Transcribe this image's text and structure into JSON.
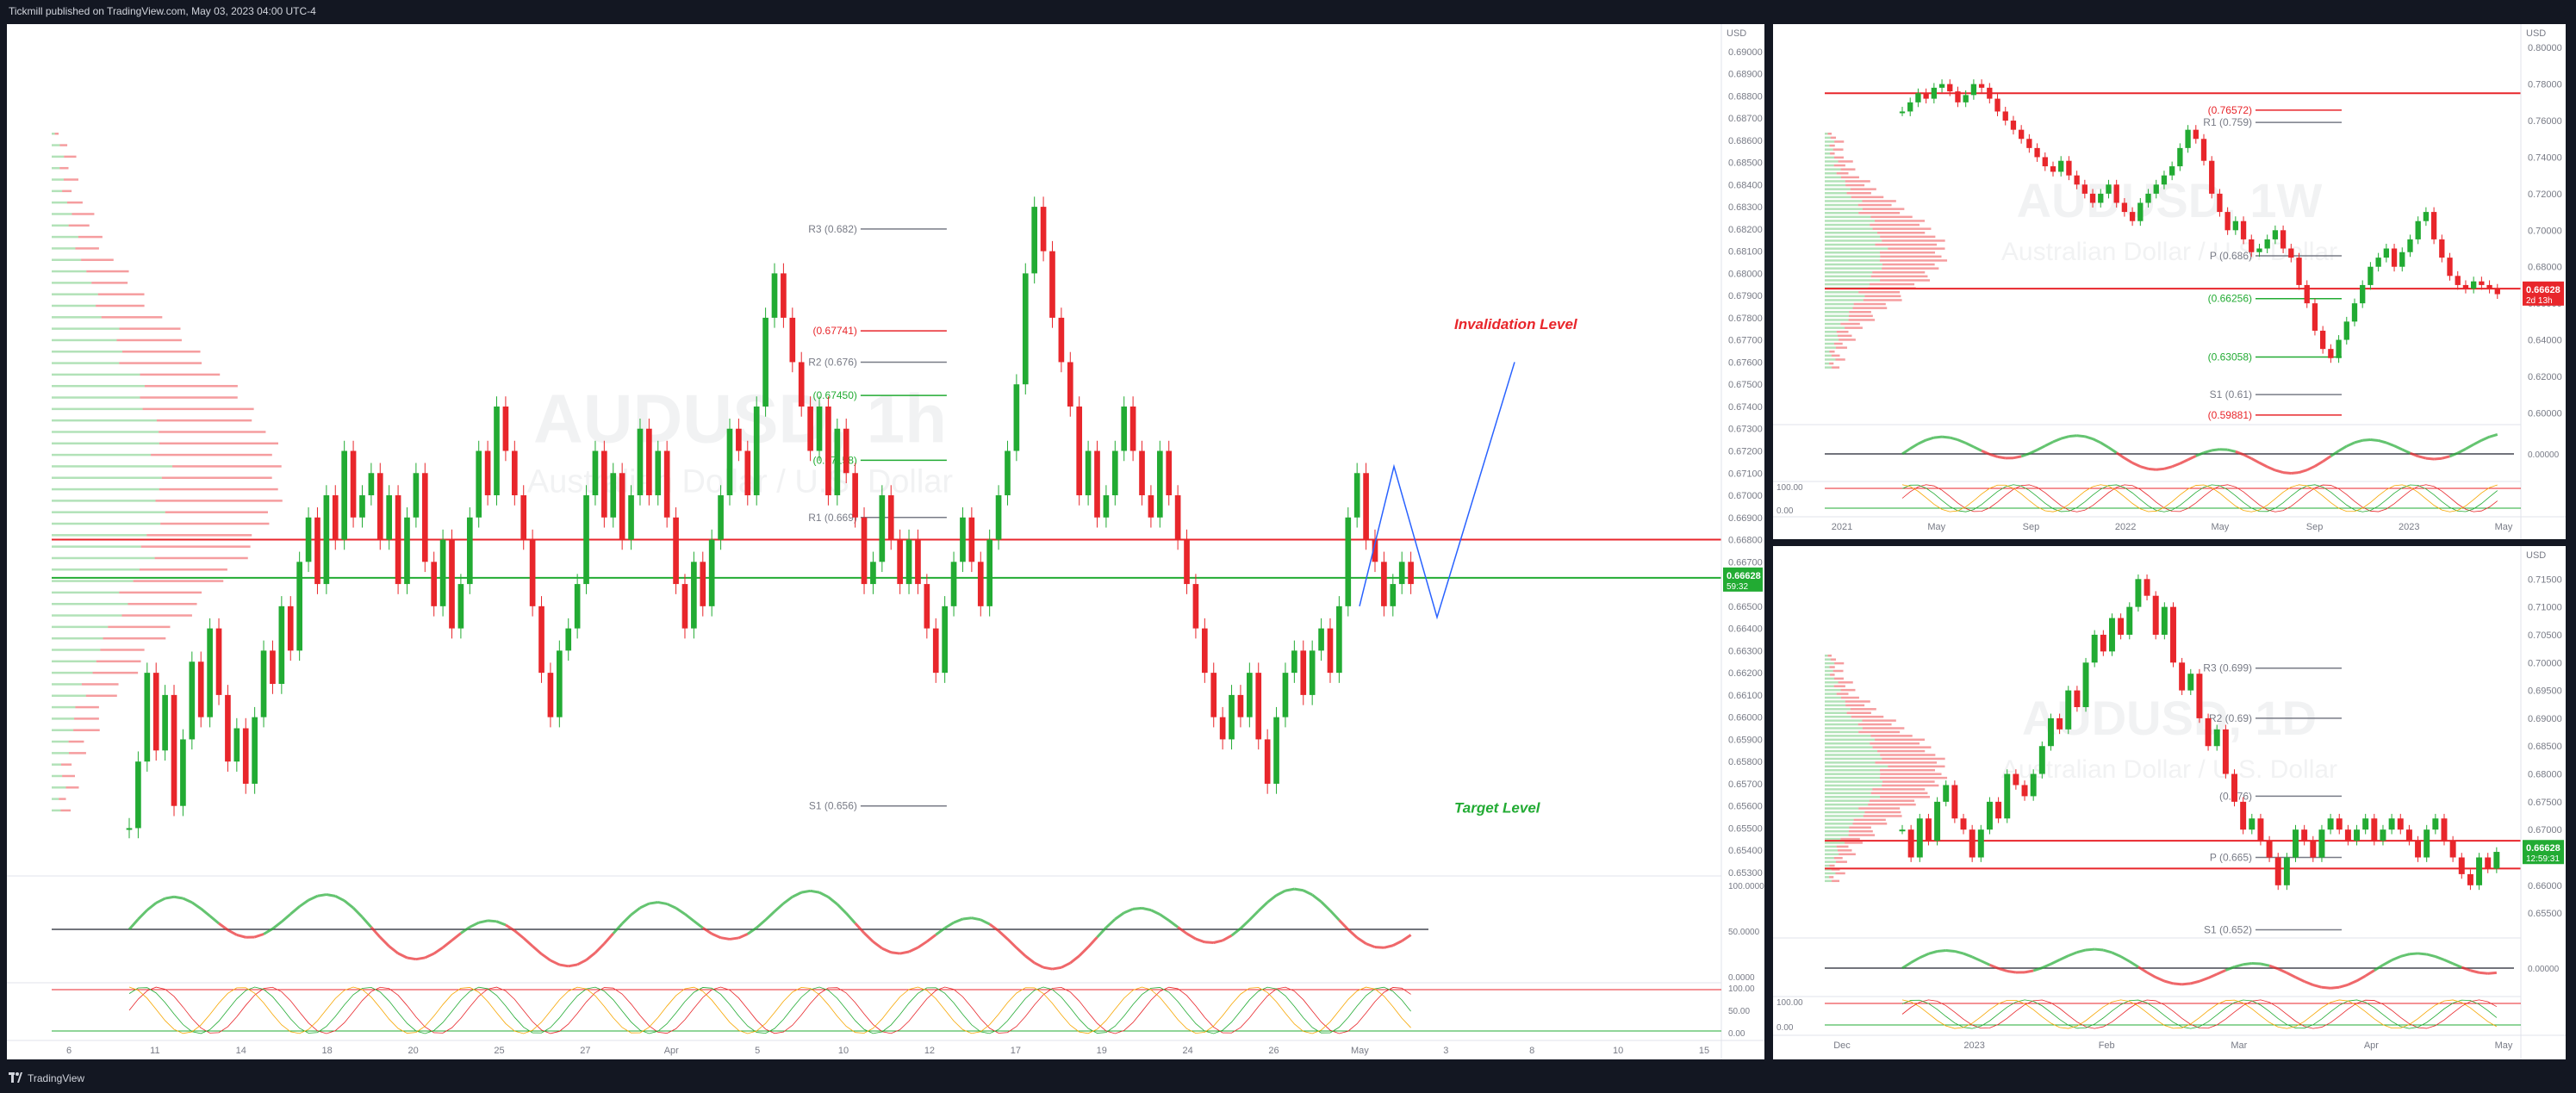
{
  "header": {
    "publisher": "Tickmill published on TradingView.com, May 03, 2023 04:00 UTC-4"
  },
  "footer": {
    "brand": "TradingView"
  },
  "colors": {
    "up": "#22ab33",
    "down": "#e8262b",
    "bg": "#ffffff",
    "axis": "#787b86",
    "blue": "#2962ff"
  },
  "chart_data": [
    {
      "id": "main",
      "type": "candlestick",
      "symbol": "AUDUSD",
      "timeframe": "1h",
      "watermark": "AUDUSD, 1h",
      "subtitle": "Australian Dollar / U.S. Dollar",
      "currency": "USD",
      "ylim": [
        0.653,
        0.691
      ],
      "price_ticks": [
        "0.69000",
        "0.68900",
        "0.68800",
        "0.68700",
        "0.68600",
        "0.68500",
        "0.68400",
        "0.68300",
        "0.68200",
        "0.68100",
        "0.68000",
        "0.67900",
        "0.67800",
        "0.67700",
        "0.67600",
        "0.67500",
        "0.67400",
        "0.67300",
        "0.67200",
        "0.67100",
        "0.67000",
        "0.66900",
        "0.66800",
        "0.66700",
        "0.66600",
        "0.66500",
        "0.66400",
        "0.66300",
        "0.66200",
        "0.66100",
        "0.66000",
        "0.65900",
        "0.65800",
        "0.65700",
        "0.65600",
        "0.65500",
        "0.65400",
        "0.65300"
      ],
      "x_labels": [
        "6",
        "11",
        "14",
        "18",
        "20",
        "25",
        "27",
        "Apr",
        "5",
        "10",
        "12",
        "17",
        "19",
        "24",
        "26",
        "May",
        "3",
        "8",
        "10",
        "15"
      ],
      "last_price": "0.66628",
      "countdown": "59:32",
      "pivots": [
        {
          "label": "R3 (0.682)",
          "value": 0.682,
          "color": "#787b86"
        },
        {
          "label": "(0.67741)",
          "value": 0.67741,
          "color": "#e8262b"
        },
        {
          "label": "R2 (0.676)",
          "value": 0.676,
          "color": "#787b86"
        },
        {
          "label": "(0.67450)",
          "value": 0.6745,
          "color": "#22ab33"
        },
        {
          "label": "(0.67158)",
          "value": 0.67158,
          "color": "#22ab33"
        },
        {
          "label": "R1 (0.669)",
          "value": 0.669,
          "color": "#787b86"
        },
        {
          "label": "S1 (0.656)",
          "value": 0.656,
          "color": "#787b86"
        }
      ],
      "annotations": [
        {
          "text": "Invalidation Level",
          "value": 0.6775,
          "color": "#e8262b"
        },
        {
          "text": "Target Level",
          "value": 0.6557,
          "color": "#22ab33"
        }
      ],
      "horizontal_lines": [
        {
          "value": 0.668,
          "color": "#e8262b"
        },
        {
          "value": 0.66628,
          "color": "#22ab33"
        }
      ],
      "projection": [
        [
          0.665,
          0.6713,
          0.6645,
          0.676
        ]
      ],
      "oscillator_ticks": [
        "100.0000",
        "50.0000",
        "0.0000"
      ],
      "stoch_ticks": [
        "100.00",
        "50.00",
        "0.00"
      ],
      "candles": [
        0.655,
        0.658,
        0.662,
        0.6585,
        0.661,
        0.656,
        0.659,
        0.6625,
        0.66,
        0.664,
        0.661,
        0.658,
        0.6595,
        0.657,
        0.66,
        0.663,
        0.6615,
        0.665,
        0.663,
        0.667,
        0.669,
        0.666,
        0.67,
        0.668,
        0.672,
        0.669,
        0.67,
        0.671,
        0.668,
        0.67,
        0.666,
        0.669,
        0.671,
        0.667,
        0.665,
        0.668,
        0.664,
        0.666,
        0.669,
        0.672,
        0.67,
        0.674,
        0.672,
        0.67,
        0.668,
        0.665,
        0.662,
        0.66,
        0.663,
        0.664,
        0.666,
        0.67,
        0.672,
        0.669,
        0.671,
        0.668,
        0.67,
        0.673,
        0.67,
        0.672,
        0.669,
        0.666,
        0.664,
        0.667,
        0.665,
        0.668,
        0.67,
        0.673,
        0.672,
        0.67,
        0.674,
        0.678,
        0.68,
        0.678,
        0.676,
        0.674,
        0.672,
        0.674,
        0.67,
        0.673,
        0.671,
        0.669,
        0.666,
        0.667,
        0.67,
        0.668,
        0.666,
        0.668,
        0.666,
        0.664,
        0.662,
        0.665,
        0.667,
        0.669,
        0.667,
        0.665,
        0.668,
        0.67,
        0.672,
        0.675,
        0.68,
        0.683,
        0.681,
        0.678,
        0.676,
        0.674,
        0.67,
        0.672,
        0.669,
        0.67,
        0.672,
        0.674,
        0.672,
        0.67,
        0.669,
        0.672,
        0.67,
        0.668,
        0.666,
        0.664,
        0.662,
        0.66,
        0.659,
        0.661,
        0.66,
        0.662,
        0.659,
        0.657,
        0.66,
        0.662,
        0.663,
        0.661,
        0.663,
        0.664,
        0.662,
        0.665,
        0.669,
        0.671,
        0.668,
        0.667,
        0.665,
        0.666,
        0.667,
        0.666
      ]
    },
    {
      "id": "weekly",
      "type": "candlestick",
      "symbol": "AUDUSD",
      "timeframe": "1W",
      "watermark": "AUDUSD, 1W",
      "subtitle": "Australian Dollar / U.S. Dollar",
      "currency": "USD",
      "ylim": [
        0.595,
        0.81
      ],
      "price_ticks": [
        "0.80000",
        "0.78000",
        "0.76000",
        "0.74000",
        "0.72000",
        "0.70000",
        "0.68000",
        "0.66000",
        "0.64000",
        "0.62000",
        "0.60000"
      ],
      "x_labels": [
        "2021",
        "May",
        "Sep",
        "2022",
        "May",
        "Sep",
        "2023",
        "May"
      ],
      "last_price": "0.66628",
      "countdown": "2d 13h",
      "pivots": [
        {
          "label": "(0.76572)",
          "value": 0.76572,
          "color": "#e8262b"
        },
        {
          "label": "R1 (0.759)",
          "value": 0.759,
          "color": "#787b86"
        },
        {
          "label": "P (0.686)",
          "value": 0.686,
          "color": "#787b86"
        },
        {
          "label": "(0.66256)",
          "value": 0.66256,
          "color": "#22ab33"
        },
        {
          "label": "(0.63058)",
          "value": 0.63058,
          "color": "#22ab33"
        },
        {
          "label": "S1 (0.61)",
          "value": 0.61,
          "color": "#787b86"
        },
        {
          "label": "(0.59881)",
          "value": 0.59881,
          "color": "#e8262b"
        }
      ],
      "horizontal_lines": [
        {
          "value": 0.775,
          "color": "#e8262b"
        },
        {
          "value": 0.668,
          "color": "#e8262b"
        }
      ],
      "oscillator_ticks": [
        "0.00000"
      ],
      "stoch_ticks": [
        "100.00",
        "0.00"
      ],
      "candles": [
        0.765,
        0.77,
        0.775,
        0.772,
        0.778,
        0.78,
        0.776,
        0.77,
        0.774,
        0.78,
        0.778,
        0.772,
        0.765,
        0.76,
        0.755,
        0.75,
        0.745,
        0.74,
        0.735,
        0.732,
        0.738,
        0.73,
        0.725,
        0.72,
        0.715,
        0.72,
        0.725,
        0.715,
        0.71,
        0.705,
        0.715,
        0.72,
        0.725,
        0.73,
        0.735,
        0.745,
        0.755,
        0.75,
        0.738,
        0.72,
        0.71,
        0.7,
        0.705,
        0.695,
        0.688,
        0.69,
        0.695,
        0.7,
        0.69,
        0.685,
        0.67,
        0.66,
        0.645,
        0.635,
        0.63,
        0.64,
        0.65,
        0.66,
        0.67,
        0.68,
        0.685,
        0.69,
        0.68,
        0.688,
        0.695,
        0.705,
        0.71,
        0.695,
        0.685,
        0.675,
        0.67,
        0.668,
        0.672,
        0.67,
        0.668,
        0.665
      ]
    },
    {
      "id": "daily",
      "type": "candlestick",
      "symbol": "AUDUSD",
      "timeframe": "1D",
      "watermark": "AUDUSD, 1D",
      "subtitle": "Australian Dollar / U.S. Dollar",
      "currency": "USD",
      "ylim": [
        0.651,
        0.72
      ],
      "price_ticks": [
        "0.71500",
        "0.71000",
        "0.70500",
        "0.70000",
        "0.69500",
        "0.69000",
        "0.68500",
        "0.68000",
        "0.67500",
        "0.67000",
        "0.66500",
        "0.66000",
        "0.65500"
      ],
      "x_labels": [
        "Dec",
        "2023",
        "Feb",
        "Mar",
        "Apr",
        "May"
      ],
      "last_price": "0.66628",
      "countdown": "12:59:31",
      "pivots": [
        {
          "label": "R3 (0.699)",
          "value": 0.699,
          "color": "#787b86"
        },
        {
          "label": "R2 (0.69)",
          "value": 0.69,
          "color": "#787b86"
        },
        {
          "label": "(0.676)",
          "value": 0.676,
          "color": "#787b86"
        },
        {
          "label": "P (0.665)",
          "value": 0.665,
          "color": "#787b86"
        },
        {
          "label": "S1 (0.652)",
          "value": 0.652,
          "color": "#787b86"
        }
      ],
      "horizontal_lines": [
        {
          "value": 0.668,
          "color": "#e8262b"
        },
        {
          "value": 0.663,
          "color": "#e8262b"
        }
      ],
      "oscillator_ticks": [
        "0.00000"
      ],
      "stoch_ticks": [
        "100.00",
        "0.00"
      ],
      "candles": [
        0.67,
        0.665,
        0.672,
        0.668,
        0.675,
        0.678,
        0.672,
        0.67,
        0.665,
        0.67,
        0.675,
        0.672,
        0.68,
        0.678,
        0.676,
        0.68,
        0.685,
        0.69,
        0.688,
        0.695,
        0.692,
        0.7,
        0.705,
        0.702,
        0.708,
        0.705,
        0.71,
        0.715,
        0.712,
        0.705,
        0.71,
        0.7,
        0.695,
        0.698,
        0.69,
        0.685,
        0.688,
        0.68,
        0.675,
        0.67,
        0.672,
        0.668,
        0.665,
        0.66,
        0.665,
        0.67,
        0.668,
        0.665,
        0.67,
        0.672,
        0.67,
        0.668,
        0.67,
        0.672,
        0.668,
        0.67,
        0.672,
        0.67,
        0.668,
        0.665,
        0.67,
        0.672,
        0.668,
        0.665,
        0.662,
        0.66,
        0.665,
        0.663,
        0.666
      ]
    }
  ]
}
